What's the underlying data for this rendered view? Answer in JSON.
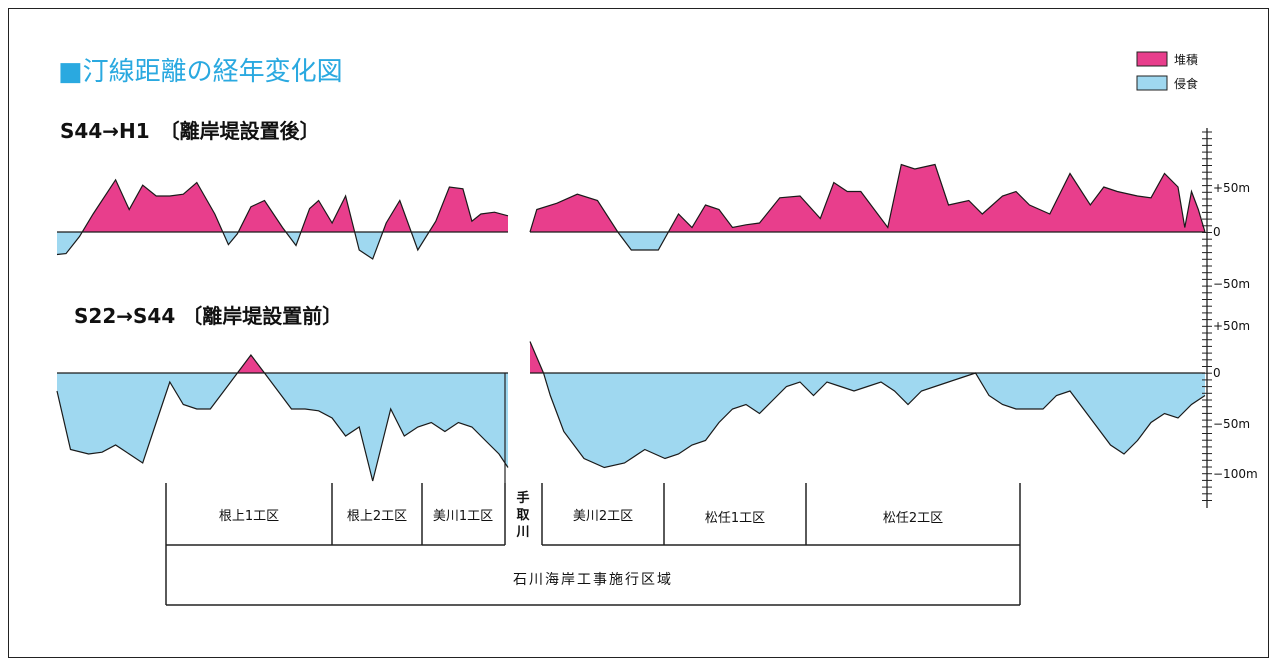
{
  "title": "■汀線距離の経年変化図",
  "legend": [
    {
      "label": "堆積",
      "color": "#e83e8c"
    },
    {
      "label": "侵食",
      "color": "#9fd8f0"
    }
  ],
  "colors": {
    "accretion": "#e83e8c",
    "erosion": "#9fd8f0",
    "title": "#2aa9e0",
    "outline": "#1a1a1a"
  },
  "chart_data": [
    {
      "type": "area",
      "title": "S44→H1　〔離岸堤設置後〕",
      "xlabel": "",
      "ylabel": "",
      "ylim": [
        -100,
        100
      ],
      "ytick_labels": [
        "+50m",
        "0",
        "−50m"
      ],
      "series": [
        {
          "segment": "west",
          "x": [
            0,
            2,
            5,
            8,
            13,
            16,
            19,
            22,
            25,
            28,
            31,
            35,
            38,
            40,
            43,
            46,
            50,
            53,
            56,
            58,
            61,
            64,
            67,
            70,
            73,
            76,
            80,
            84,
            87,
            90,
            92,
            94,
            97,
            100
          ],
          "y": [
            -25,
            -24,
            -5,
            20,
            58,
            25,
            52,
            40,
            40,
            42,
            55,
            20,
            -14,
            -2,
            28,
            35,
            5,
            -15,
            26,
            35,
            10,
            40,
            -20,
            -30,
            10,
            35,
            -20,
            12,
            50,
            48,
            12,
            20,
            22,
            18
          ]
        },
        {
          "segment": "east",
          "x": [
            0,
            1,
            4,
            7,
            10,
            13,
            15,
            19,
            22,
            24,
            26,
            28,
            30,
            32,
            34,
            37,
            40,
            43,
            45,
            47,
            49,
            51,
            53,
            55,
            57,
            60,
            62,
            65,
            67,
            70,
            72,
            74,
            77,
            80,
            83,
            85,
            87,
            90,
            92,
            94,
            96,
            97,
            98,
            99,
            100
          ],
          "y": [
            0,
            25,
            32,
            42,
            35,
            0,
            -20,
            -20,
            20,
            5,
            30,
            25,
            5,
            8,
            10,
            38,
            40,
            15,
            55,
            45,
            45,
            25,
            5,
            75,
            70,
            75,
            30,
            35,
            20,
            40,
            45,
            30,
            20,
            65,
            30,
            50,
            45,
            40,
            38,
            65,
            50,
            5,
            45,
            25,
            0
          ]
        }
      ]
    },
    {
      "type": "area",
      "title": "S22→S44 〔離岸堤設置前〕",
      "xlabel": "",
      "ylabel": "",
      "ylim": [
        -110,
        50
      ],
      "ytick_labels": [
        "+50m",
        "0",
        "−50m",
        "−100m"
      ],
      "series": [
        {
          "segment": "west",
          "x": [
            0,
            3,
            7,
            10,
            13,
            16,
            19,
            22,
            25,
            28,
            31,
            34,
            37,
            40,
            43,
            46,
            49,
            52,
            55,
            58,
            61,
            64,
            67,
            70,
            74,
            77,
            80,
            83,
            86,
            89,
            92,
            95,
            98,
            100
          ],
          "y": [
            -20,
            -85,
            -90,
            -88,
            -80,
            -90,
            -100,
            -55,
            -10,
            -35,
            -40,
            -40,
            -20,
            0,
            20,
            0,
            -20,
            -40,
            -40,
            -42,
            -50,
            -70,
            -60,
            -120,
            -40,
            -70,
            -60,
            -55,
            -65,
            -55,
            -60,
            -75,
            -90,
            -105
          ]
        },
        {
          "segment": "east",
          "x": [
            0,
            2,
            3,
            5,
            8,
            11,
            14,
            17,
            20,
            22,
            24,
            26,
            28,
            30,
            32,
            34,
            36,
            38,
            40,
            42,
            44,
            46,
            48,
            50,
            52,
            54,
            56,
            58,
            60,
            62,
            64,
            66,
            68,
            70,
            72,
            74,
            76,
            78,
            80,
            82,
            84,
            86,
            88,
            90,
            92,
            94,
            96,
            98,
            100
          ],
          "y": [
            35,
            0,
            -25,
            -65,
            -95,
            -105,
            -100,
            -85,
            -95,
            -90,
            -80,
            -75,
            -55,
            -40,
            -35,
            -45,
            -30,
            -15,
            -10,
            -25,
            -10,
            -15,
            -20,
            -15,
            -10,
            -20,
            -35,
            -20,
            -15,
            -10,
            -5,
            0,
            -25,
            -35,
            -40,
            -40,
            -40,
            -25,
            -20,
            -40,
            -60,
            -80,
            -90,
            -75,
            -55,
            -45,
            -50,
            -35,
            -25
          ]
        }
      ]
    }
  ],
  "river_label": "手取川",
  "sections": [
    {
      "label": "根上1工区"
    },
    {
      "label": "根上2工区"
    },
    {
      "label": "美川1工区"
    },
    {
      "label": "美川2工区"
    },
    {
      "label": "松任1工区"
    },
    {
      "label": "松任2工区"
    }
  ],
  "area_label": "石川海岸工事施行区域"
}
